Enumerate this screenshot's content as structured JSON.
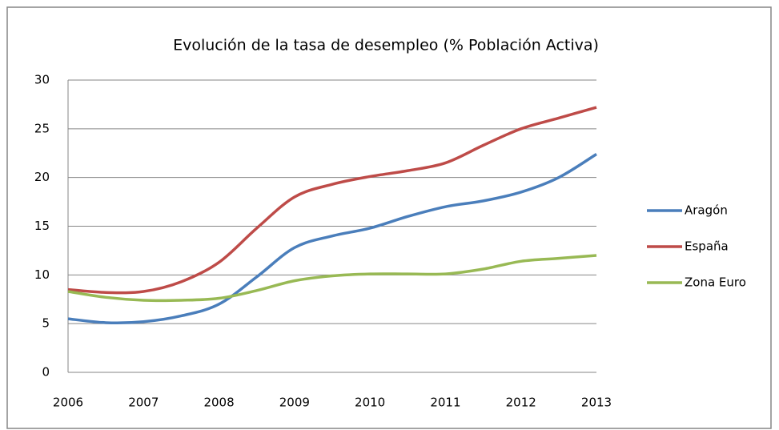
{
  "chart_data": {
    "type": "line",
    "title": "Evolución de la tasa de desempleo (% Población Activa)",
    "x": [
      2006,
      2006.5,
      2007,
      2007.5,
      2008,
      2008.5,
      2009,
      2009.5,
      2010,
      2010.5,
      2011,
      2011.5,
      2012,
      2012.5,
      2013
    ],
    "series": [
      {
        "name": "Aragón",
        "color": "#4a7ebb",
        "values": [
          5.5,
          5.1,
          5.2,
          5.8,
          7.0,
          9.8,
          12.8,
          14.0,
          14.8,
          16.0,
          17.0,
          17.6,
          18.5,
          20.0,
          22.4
        ]
      },
      {
        "name": "España",
        "color": "#be4b48",
        "values": [
          8.5,
          8.2,
          8.3,
          9.3,
          11.3,
          14.8,
          18.0,
          19.3,
          20.1,
          20.7,
          21.5,
          23.3,
          25.0,
          26.1,
          27.2
        ]
      },
      {
        "name": "Zona Euro",
        "color": "#98b954",
        "values": [
          8.3,
          7.7,
          7.4,
          7.4,
          7.6,
          8.4,
          9.4,
          9.9,
          10.1,
          10.1,
          10.1,
          10.6,
          11.4,
          11.7,
          12.0
        ]
      }
    ],
    "xlim": [
      2006,
      2013
    ],
    "xticks": [
      2006,
      2007,
      2008,
      2009,
      2010,
      2011,
      2012,
      2013
    ],
    "ylim": [
      0,
      30
    ],
    "yticks": [
      0,
      5,
      10,
      15,
      20,
      25,
      30
    ],
    "grid": true,
    "legend": "right"
  }
}
